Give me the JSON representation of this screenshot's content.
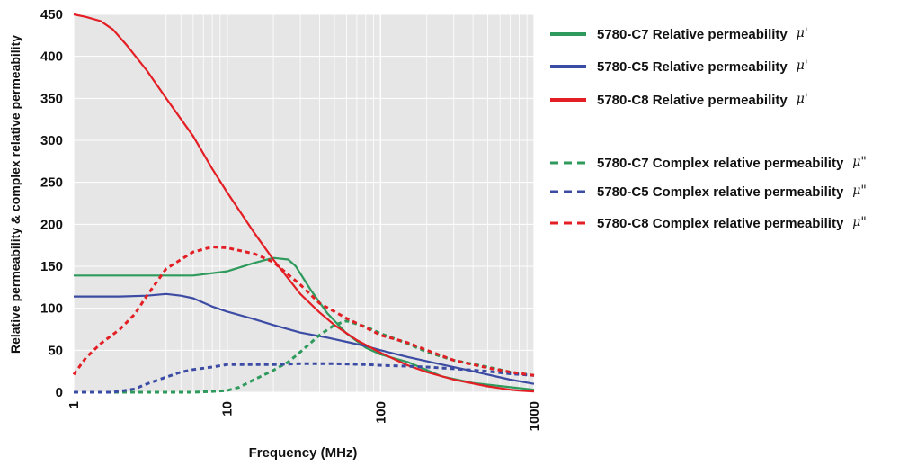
{
  "chart_data": {
    "type": "line",
    "xlabel": "Frequency (MHz)",
    "ylabel": "Relative permeability & complex relative permeability",
    "xscale": "log",
    "xlim": [
      1,
      1000
    ],
    "ylim": [
      0,
      450
    ],
    "x_ticks": [
      "1",
      "10",
      "100",
      "1000"
    ],
    "y_ticks": [
      "0",
      "50",
      "100",
      "150",
      "200",
      "250",
      "300",
      "350",
      "400",
      "450"
    ],
    "grid": true,
    "legend_position": "right",
    "series": [
      {
        "name": "5780-C7 Relative permeability",
        "symbol": "μ'",
        "color": "#2e9a5c",
        "style": "solid",
        "x": [
          1,
          2,
          4,
          6,
          10,
          15,
          20,
          25,
          28,
          35,
          45,
          60,
          80,
          100,
          150,
          250,
          400,
          700,
          1000
        ],
        "y": [
          139,
          139,
          139,
          139,
          144,
          154,
          160,
          158,
          150,
          122,
          94,
          70,
          53,
          45,
          36,
          19,
          11,
          6,
          3
        ]
      },
      {
        "name": "5780-C5 Relative permeability",
        "symbol": "μ'",
        "color": "#3c4ba3",
        "style": "solid",
        "x": [
          1,
          2,
          3,
          4,
          5,
          6,
          8,
          10,
          15,
          20,
          30,
          45,
          60,
          80,
          100,
          150,
          250,
          400,
          700,
          1000
        ],
        "y": [
          114,
          114,
          115,
          117,
          115,
          112,
          102,
          96,
          87,
          80,
          71,
          65,
          60,
          55,
          50,
          42,
          33,
          25,
          15,
          10
        ]
      },
      {
        "name": "5780-C8 Relative permeability",
        "symbol": "μ'",
        "color": "#e31e24",
        "style": "solid",
        "x": [
          1,
          1.2,
          1.5,
          1.8,
          2.2,
          3,
          4,
          6,
          8,
          10,
          15,
          20,
          30,
          40,
          50,
          70,
          100,
          150,
          200,
          300,
          500,
          700,
          800,
          1000
        ],
        "y": [
          450,
          447,
          442,
          432,
          414,
          383,
          350,
          305,
          266,
          238,
          190,
          158,
          117,
          95,
          80,
          62,
          47,
          32,
          24,
          15,
          7,
          3,
          2,
          1
        ]
      },
      {
        "name": "5780-C7 Complex relative permeability",
        "symbol": "μ\"",
        "color": "#2e9a5c",
        "style": "dashed",
        "x": [
          1,
          2,
          4,
          6,
          8,
          10,
          12,
          15,
          20,
          25,
          30,
          40,
          50,
          60,
          80,
          100,
          150,
          200,
          300,
          500,
          700,
          1000
        ],
        "y": [
          0,
          0,
          0,
          0,
          1,
          2,
          6,
          15,
          26,
          36,
          48,
          68,
          80,
          85,
          78,
          70,
          58,
          48,
          38,
          30,
          24,
          20
        ]
      },
      {
        "name": "5780-C5 Complex relative permeability",
        "symbol": "μ\"",
        "color": "#3c4ba3",
        "style": "dashed",
        "x": [
          1,
          1.5,
          1.8,
          2.5,
          3,
          4,
          5,
          6,
          8,
          10,
          15,
          20,
          30,
          50,
          80,
          100,
          150,
          200,
          300,
          500,
          700,
          1000
        ],
        "y": [
          0,
          0,
          0,
          4,
          10,
          18,
          24,
          27,
          30,
          33,
          33,
          33,
          34,
          34,
          33,
          32,
          31,
          30,
          28,
          25,
          22,
          20
        ]
      },
      {
        "name": "5780-C8 Complex relative permeability",
        "symbol": "μ\"",
        "color": "#e31e24",
        "style": "dashed",
        "x": [
          1,
          1.2,
          1.5,
          2,
          2.5,
          3,
          4,
          5,
          6,
          8,
          10,
          15,
          20,
          30,
          40,
          60,
          80,
          100,
          150,
          200,
          300,
          500,
          700,
          1000
        ],
        "y": [
          21,
          41,
          58,
          75,
          93,
          115,
          147,
          158,
          167,
          173,
          172,
          165,
          155,
          128,
          106,
          88,
          77,
          68,
          59,
          50,
          38,
          29,
          24,
          20
        ]
      }
    ]
  }
}
